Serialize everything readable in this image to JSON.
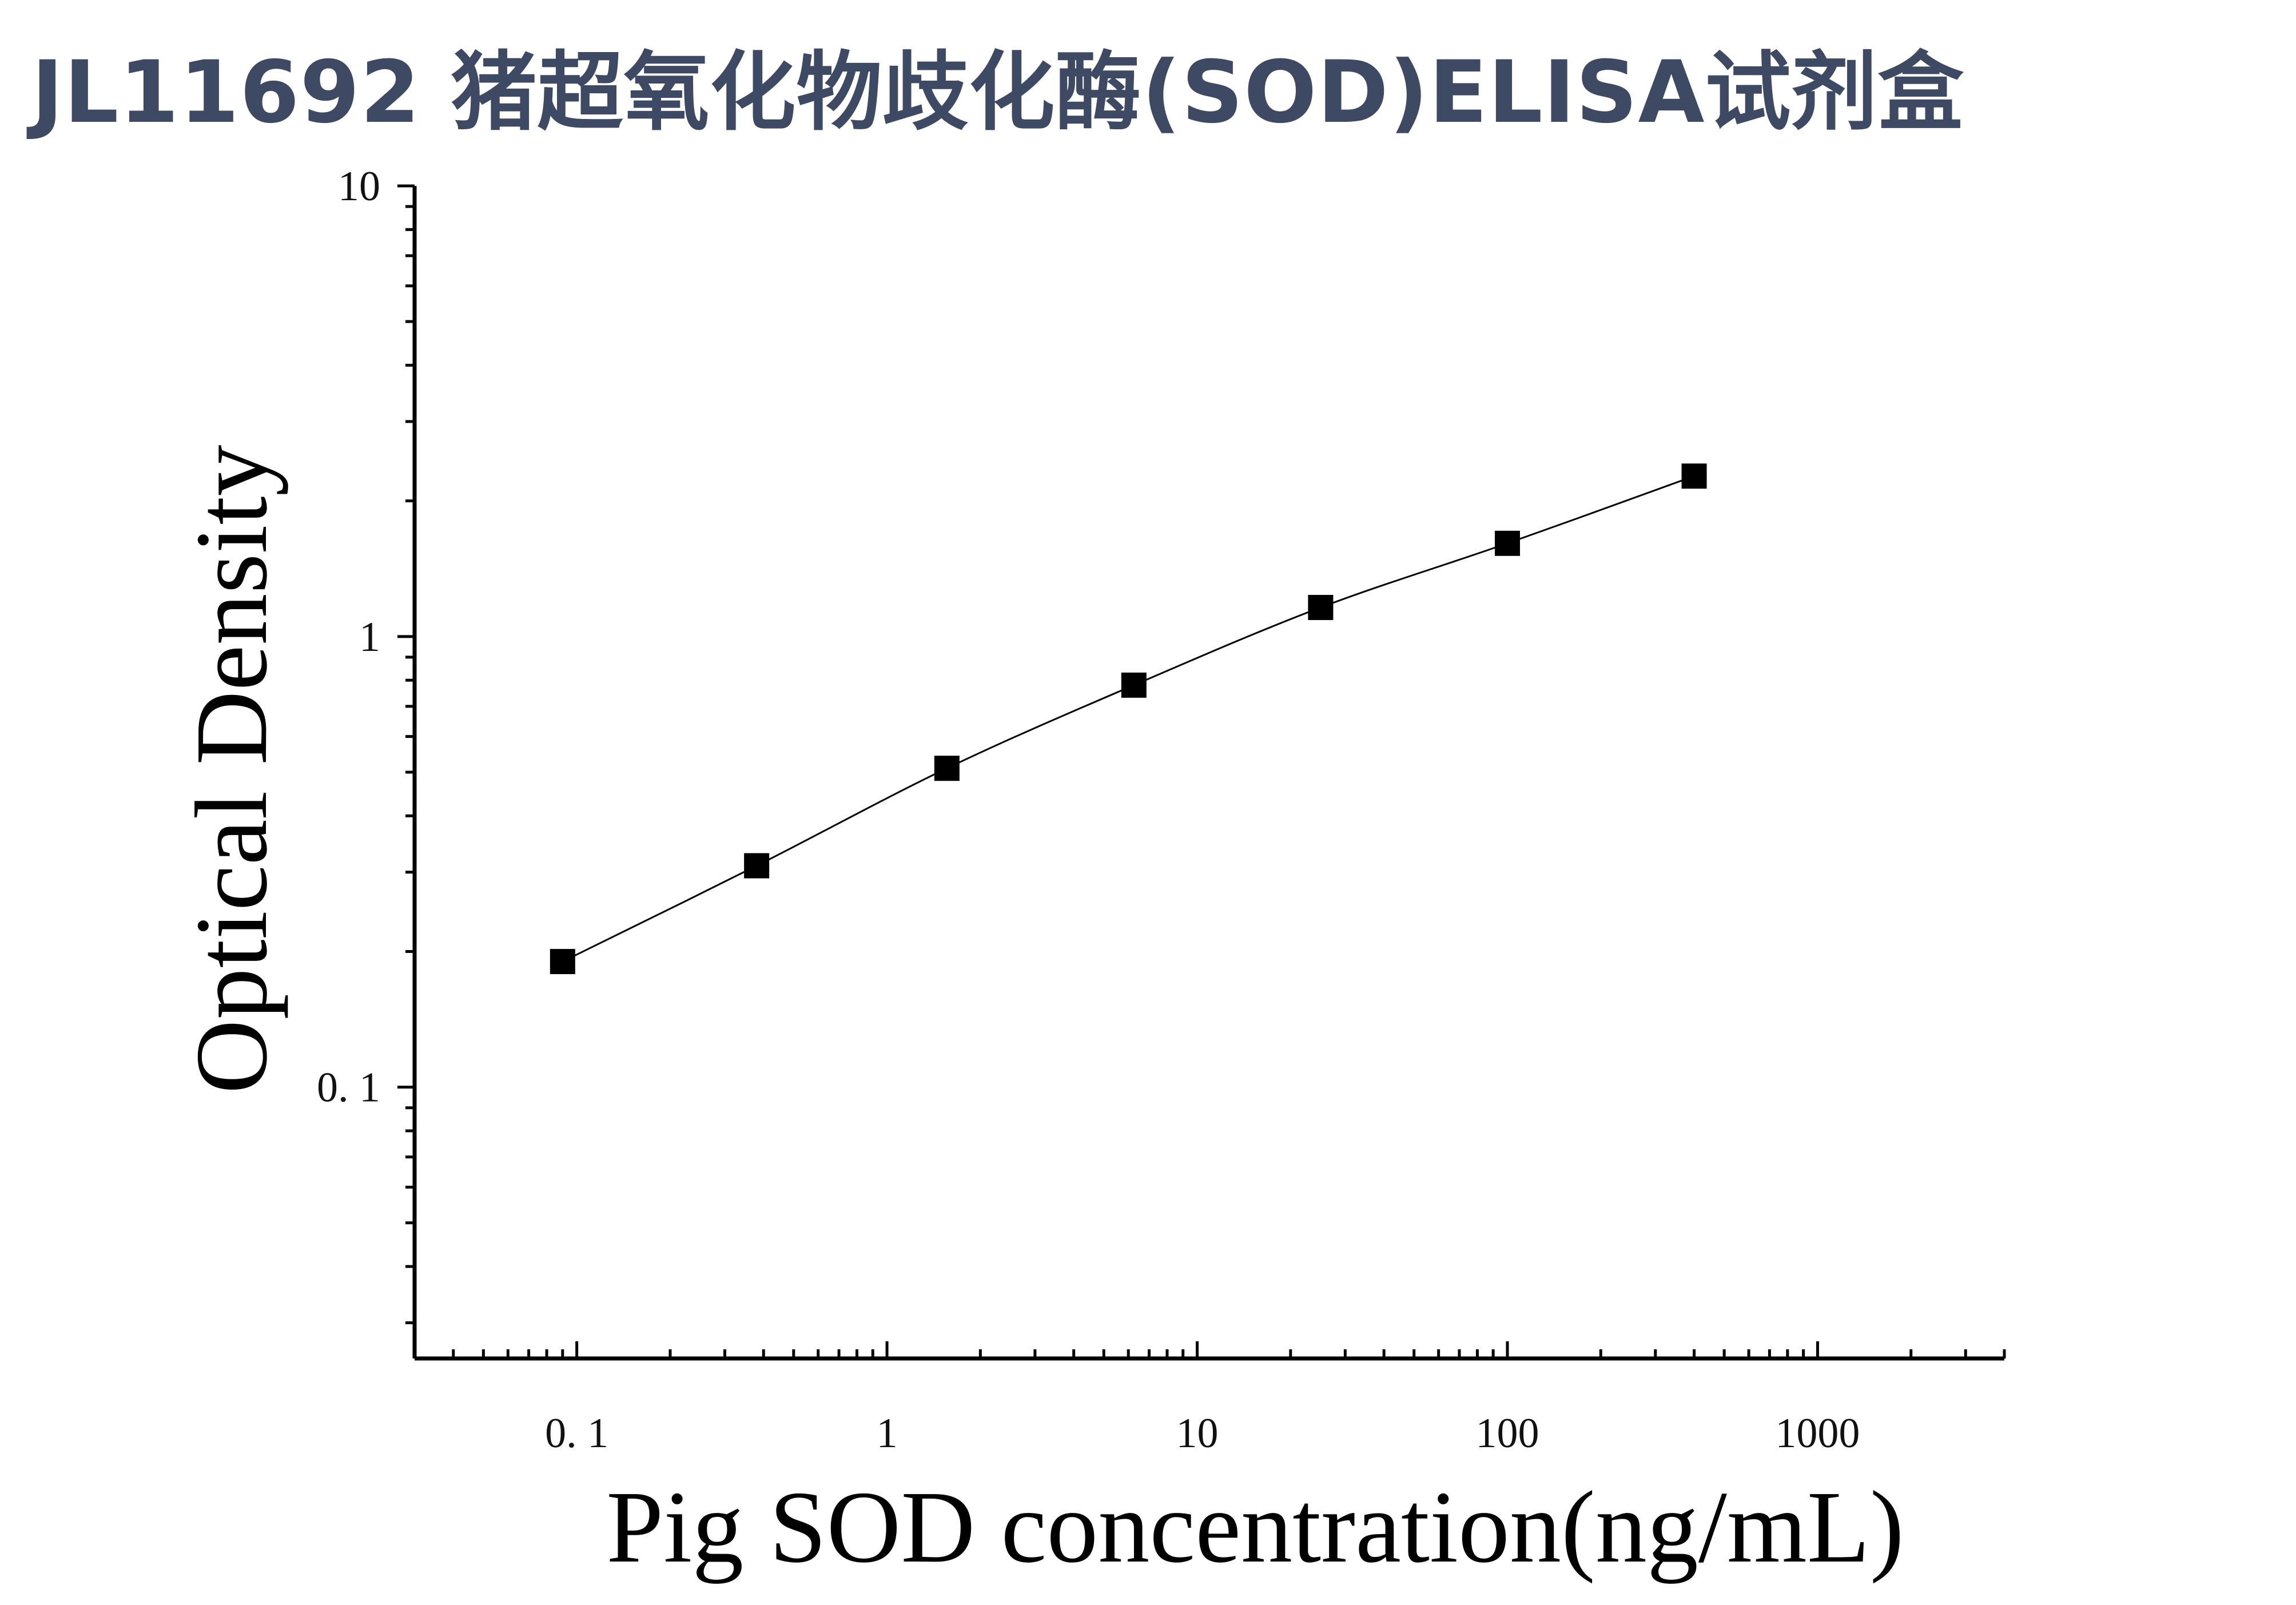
{
  "title": "JL11692 猪超氧化物歧化酶(SOD)ELISA试剂盒",
  "colors": {
    "title": "#3e4a63",
    "axis": "#000000",
    "markers": "#000000"
  },
  "chart_data": {
    "type": "scatter",
    "title": "JL11692 猪超氧化物歧化酶(SOD)ELISA试剂盒",
    "xlabel": "Pig SOD concentration(ng/mL)",
    "ylabel": "Optical Density",
    "xscale": "log",
    "yscale": "log",
    "xlim": [
      0.03,
      4000
    ],
    "ylim": [
      0.025,
      10
    ],
    "xticks": [
      0.1,
      1,
      10,
      100,
      1000
    ],
    "xtick_labels": [
      "0. 1",
      "1",
      "10",
      "100",
      "1000"
    ],
    "yticks": [
      0.1,
      1,
      10
    ],
    "ytick_labels": [
      "0. 1",
      "1",
      "10"
    ],
    "grid": false,
    "legend": "none",
    "series": [
      {
        "marker": "square",
        "line": "smooth fitted curve",
        "x": [
          0.09,
          0.38,
          1.56,
          6.25,
          25,
          100,
          400
        ],
        "y": [
          0.19,
          0.31,
          0.51,
          0.78,
          1.16,
          1.61,
          2.27
        ]
      }
    ]
  }
}
